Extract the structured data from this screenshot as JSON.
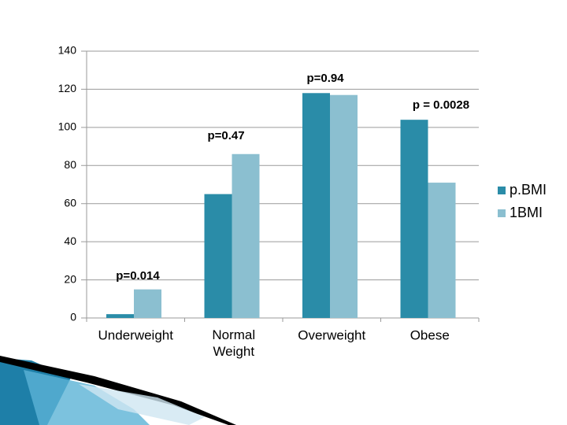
{
  "chart_data": {
    "type": "bar",
    "categories": [
      "Underweight",
      "Normal Weight",
      "Overweight",
      "Obese"
    ],
    "series": [
      {
        "name": "p.BMI",
        "color": "#2a8ca8",
        "values": [
          2,
          65,
          118,
          104
        ]
      },
      {
        "name": "1BMI",
        "color": "#8bbfd0",
        "values": [
          15,
          86,
          117,
          71
        ]
      }
    ],
    "annotations": [
      "p=0.014",
      "p=0.47",
      "p=0.94",
      "p = 0.0028"
    ],
    "ylim": [
      0,
      140
    ],
    "yticks": [
      0,
      20,
      40,
      60,
      80,
      100,
      120,
      140
    ],
    "grid": true,
    "legend": "right"
  }
}
